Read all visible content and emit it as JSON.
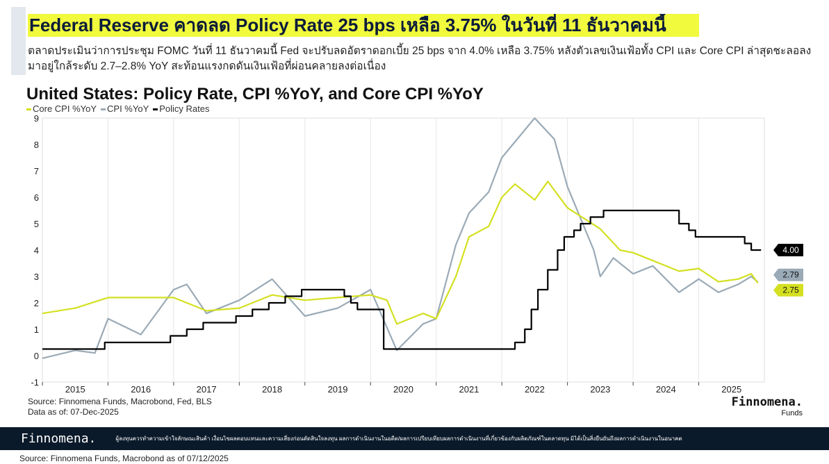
{
  "headline": "Federal Reserve คาดลด Policy Rate 25 bps เหลือ 3.75% ในวันที่ 11 ธันวาคมนี้",
  "summary": "ตลาดประเมินว่าการประชุม FOMC วันที่ 11 ธันวาคมนี้ Fed จะปรับลดอัตราดอกเบี้ย 25 bps จาก 4.0% เหลือ 3.75% หลังตัวเลขเงินเฟ้อทั้ง CPI และ Core CPI ล่าสุดชะลอลงมาอยู่ใกล้ระดับ 2.7–2.8% YoY สะท้อนแรงกดดันเงินเฟ้อที่ผ่อนคลายลงต่อเนื่อง",
  "chart_source": "Source: Finnomena Funds, Macrobond, Fed, BLS",
  "chart_date": "Data as of: 07-Dec-2025",
  "brand": {
    "name": "Finnomena.",
    "sub": "Funds"
  },
  "footer": {
    "logo": "Finnomena.",
    "disclaimer": "ผู้ลงทุนควรทำความเข้าใจลักษณะสินค้า เงื่อนไขผลตอบแทนและความเสี่ยงก่อนตัดสินใจลงทุน ผลการดำเนินงานในอดีต/ผลการเปรียบเทียบผลการดำเนินงานที่เกี่ยวข้องกับผลิตภัณฑ์ในตลาดทุน มิได้เป็นสิ่งยืนยันถึงผลการดำเนินงานในอนาคต"
  },
  "bottom_source": "Source: Finnomena Funds, Macrobond as of 07/12/2025",
  "chart_data": {
    "type": "line",
    "title": "United States: Policy Rate, CPI %YoY, and Core CPI %YoY",
    "xlabel": "",
    "ylabel": "",
    "xlim": [
      2015.0,
      2026.0
    ],
    "ylim": [
      -1,
      9
    ],
    "yticks": [
      -1,
      0,
      1,
      2,
      3,
      4,
      5,
      6,
      7,
      8,
      9
    ],
    "xticks": [
      "2015",
      "2016",
      "2017",
      "2018",
      "2019",
      "2020",
      "2021",
      "2022",
      "2023",
      "2024",
      "2025"
    ],
    "grid": "vertical",
    "legend": "top-left",
    "series": [
      {
        "name": "Core CPI %YoY",
        "color": "#d4e021",
        "last_label": "2.75",
        "points": [
          [
            2015.0,
            1.6
          ],
          [
            2015.5,
            1.8
          ],
          [
            2016.0,
            2.2
          ],
          [
            2016.5,
            2.2
          ],
          [
            2017.0,
            2.2
          ],
          [
            2017.5,
            1.7
          ],
          [
            2018.0,
            1.8
          ],
          [
            2018.5,
            2.3
          ],
          [
            2019.0,
            2.1
          ],
          [
            2019.5,
            2.2
          ],
          [
            2020.0,
            2.3
          ],
          [
            2020.25,
            2.1
          ],
          [
            2020.4,
            1.2
          ],
          [
            2020.8,
            1.6
          ],
          [
            2021.0,
            1.4
          ],
          [
            2021.3,
            3.0
          ],
          [
            2021.5,
            4.5
          ],
          [
            2021.8,
            4.9
          ],
          [
            2022.0,
            6.0
          ],
          [
            2022.2,
            6.5
          ],
          [
            2022.5,
            5.9
          ],
          [
            2022.7,
            6.6
          ],
          [
            2023.0,
            5.6
          ],
          [
            2023.5,
            4.8
          ],
          [
            2023.8,
            4.0
          ],
          [
            2024.0,
            3.9
          ],
          [
            2024.3,
            3.6
          ],
          [
            2024.7,
            3.2
          ],
          [
            2025.0,
            3.3
          ],
          [
            2025.3,
            2.8
          ],
          [
            2025.6,
            2.9
          ],
          [
            2025.8,
            3.1
          ],
          [
            2025.9,
            2.75
          ]
        ]
      },
      {
        "name": "CPI %YoY",
        "color": "#9aaab6",
        "last_label": "2.79",
        "points": [
          [
            2015.0,
            -0.1
          ],
          [
            2015.5,
            0.2
          ],
          [
            2015.8,
            0.1
          ],
          [
            2016.0,
            1.4
          ],
          [
            2016.5,
            0.8
          ],
          [
            2017.0,
            2.5
          ],
          [
            2017.2,
            2.7
          ],
          [
            2017.5,
            1.6
          ],
          [
            2018.0,
            2.1
          ],
          [
            2018.5,
            2.9
          ],
          [
            2019.0,
            1.5
          ],
          [
            2019.5,
            1.8
          ],
          [
            2020.0,
            2.5
          ],
          [
            2020.4,
            0.2
          ],
          [
            2020.8,
            1.2
          ],
          [
            2021.0,
            1.4
          ],
          [
            2021.3,
            4.2
          ],
          [
            2021.5,
            5.4
          ],
          [
            2021.8,
            6.2
          ],
          [
            2022.0,
            7.5
          ],
          [
            2022.5,
            9.0
          ],
          [
            2022.8,
            8.2
          ],
          [
            2023.0,
            6.4
          ],
          [
            2023.4,
            4.0
          ],
          [
            2023.5,
            3.0
          ],
          [
            2023.7,
            3.7
          ],
          [
            2024.0,
            3.1
          ],
          [
            2024.3,
            3.4
          ],
          [
            2024.7,
            2.4
          ],
          [
            2025.0,
            2.9
          ],
          [
            2025.3,
            2.4
          ],
          [
            2025.6,
            2.7
          ],
          [
            2025.8,
            3.0
          ],
          [
            2025.9,
            2.79
          ]
        ]
      },
      {
        "name": "Policy Rates",
        "color": "#000000",
        "last_label": "4.00",
        "step": true,
        "points": [
          [
            2015.0,
            0.25
          ],
          [
            2015.95,
            0.5
          ],
          [
            2016.95,
            0.75
          ],
          [
            2017.2,
            1.0
          ],
          [
            2017.45,
            1.25
          ],
          [
            2017.95,
            1.5
          ],
          [
            2018.2,
            1.75
          ],
          [
            2018.45,
            2.0
          ],
          [
            2018.7,
            2.25
          ],
          [
            2018.95,
            2.5
          ],
          [
            2019.6,
            2.25
          ],
          [
            2019.7,
            2.0
          ],
          [
            2019.8,
            1.75
          ],
          [
            2020.2,
            0.25
          ],
          [
            2022.2,
            0.5
          ],
          [
            2022.35,
            1.0
          ],
          [
            2022.45,
            1.75
          ],
          [
            2022.55,
            2.5
          ],
          [
            2022.7,
            3.25
          ],
          [
            2022.85,
            4.0
          ],
          [
            2022.95,
            4.5
          ],
          [
            2023.1,
            4.75
          ],
          [
            2023.2,
            5.0
          ],
          [
            2023.35,
            5.25
          ],
          [
            2023.55,
            5.5
          ],
          [
            2024.7,
            5.0
          ],
          [
            2024.85,
            4.75
          ],
          [
            2024.95,
            4.5
          ],
          [
            2025.7,
            4.25
          ],
          [
            2025.8,
            4.0
          ],
          [
            2025.95,
            4.0
          ]
        ]
      }
    ]
  }
}
